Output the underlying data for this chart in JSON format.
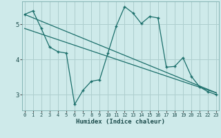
{
  "xlabel": "Humidex (Indice chaleur)",
  "background_color": "#ceeaea",
  "grid_color": "#aecece",
  "line_color": "#1a6e6a",
  "x_ticks": [
    0,
    1,
    2,
    3,
    4,
    5,
    6,
    7,
    8,
    9,
    10,
    11,
    12,
    13,
    14,
    15,
    16,
    17,
    18,
    19,
    20,
    21,
    22,
    23
  ],
  "y_ticks": [
    3,
    4,
    5
  ],
  "xlim": [
    -0.3,
    23.3
  ],
  "ylim": [
    2.55,
    5.65
  ],
  "line1_x": [
    0,
    1,
    2,
    3,
    4,
    5,
    6,
    7,
    8,
    9,
    10,
    11,
    12,
    13,
    14,
    15,
    16,
    17,
    18,
    19,
    20,
    21,
    22,
    23
  ],
  "line1_y": [
    5.28,
    5.38,
    4.88,
    4.35,
    4.22,
    4.18,
    2.72,
    3.12,
    3.38,
    3.42,
    4.18,
    4.95,
    5.5,
    5.32,
    5.02,
    5.22,
    5.18,
    3.78,
    3.8,
    4.05,
    3.52,
    3.22,
    3.08,
    3.0
  ],
  "line2_x": [
    0,
    23
  ],
  "line2_y": [
    5.28,
    3.05
  ],
  "line3_x": [
    0,
    23
  ],
  "line3_y": [
    4.88,
    3.05
  ]
}
